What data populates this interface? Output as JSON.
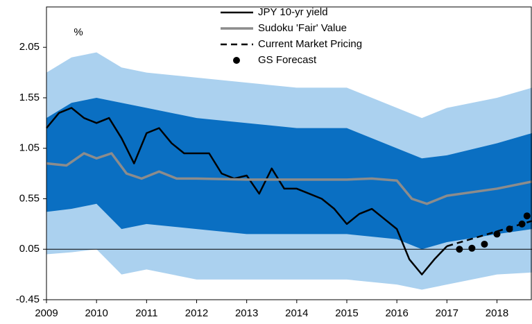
{
  "chart_data": {
    "type": "line",
    "y_unit": "%",
    "xlim": [
      2009,
      2018.7
    ],
    "xticks": [
      2009,
      2010,
      2011,
      2012,
      2013,
      2014,
      2015,
      2016,
      2017,
      2018
    ],
    "ylim": [
      -0.45,
      2.45
    ],
    "yticks": [
      -0.45,
      0.05,
      0.55,
      1.05,
      1.55,
      2.05
    ],
    "legend": "top",
    "bands": [
      {
        "color": "#abd1ef",
        "x": [
          2009,
          2009.5,
          2010,
          2010.5,
          2011,
          2012,
          2013,
          2014,
          2015,
          2016,
          2016.5,
          2017,
          2018,
          2018.7
        ],
        "upper": [
          1.8,
          1.95,
          2.0,
          1.85,
          1.8,
          1.75,
          1.7,
          1.65,
          1.65,
          1.45,
          1.35,
          1.45,
          1.55,
          1.65
        ],
        "lower": [
          0.0,
          0.02,
          0.05,
          -0.2,
          -0.15,
          -0.25,
          -0.25,
          -0.25,
          -0.25,
          -0.3,
          -0.35,
          -0.3,
          -0.2,
          -0.18
        ]
      },
      {
        "color": "#0a6fc2",
        "x": [
          2009,
          2009.5,
          2010,
          2010.5,
          2011,
          2012,
          2013,
          2014,
          2015,
          2016,
          2016.5,
          2017,
          2018,
          2018.7
        ],
        "upper": [
          1.35,
          1.5,
          1.55,
          1.5,
          1.45,
          1.35,
          1.3,
          1.25,
          1.25,
          1.05,
          0.95,
          0.98,
          1.1,
          1.2
        ],
        "lower": [
          0.42,
          0.45,
          0.5,
          0.25,
          0.3,
          0.25,
          0.2,
          0.2,
          0.2,
          0.15,
          0.05,
          0.12,
          0.2,
          0.25
        ]
      }
    ],
    "series": [
      {
        "name": "JPY 10-yr yield",
        "color": "#000000",
        "style": "solid",
        "width": 2.5,
        "x": [
          2009,
          2009.25,
          2009.5,
          2009.75,
          2010,
          2010.25,
          2010.5,
          2010.75,
          2011,
          2011.25,
          2011.5,
          2011.75,
          2012,
          2012.25,
          2012.5,
          2012.75,
          2013,
          2013.25,
          2013.5,
          2013.75,
          2014,
          2014.25,
          2014.5,
          2014.75,
          2015,
          2015.25,
          2015.5,
          2015.75,
          2016,
          2016.25,
          2016.5,
          2016.75,
          2017
        ],
        "values": [
          1.25,
          1.4,
          1.45,
          1.35,
          1.3,
          1.35,
          1.15,
          0.9,
          1.2,
          1.25,
          1.1,
          1.0,
          1.0,
          1.0,
          0.8,
          0.75,
          0.78,
          0.6,
          0.85,
          0.65,
          0.65,
          0.6,
          0.55,
          0.45,
          0.3,
          0.4,
          0.45,
          0.35,
          0.25,
          -0.05,
          -0.2,
          -0.05,
          0.08
        ]
      },
      {
        "name": "Sudoku 'Fair' Value",
        "color": "#8c8c8c",
        "style": "solid",
        "width": 3.5,
        "x": [
          2009,
          2009.4,
          2009.75,
          2010,
          2010.3,
          2010.6,
          2010.9,
          2011.25,
          2011.6,
          2012,
          2013,
          2014,
          2015,
          2015.5,
          2016,
          2016.3,
          2016.6,
          2017,
          2018,
          2018.7
        ],
        "values": [
          0.9,
          0.88,
          1.0,
          0.95,
          1.0,
          0.8,
          0.75,
          0.82,
          0.75,
          0.75,
          0.74,
          0.74,
          0.74,
          0.75,
          0.73,
          0.55,
          0.5,
          0.58,
          0.65,
          0.72
        ]
      },
      {
        "name": "Current Market Pricing",
        "color": "#000000",
        "style": "dashed",
        "width": 2.5,
        "x": [
          2017,
          2018.7
        ],
        "values": [
          0.08,
          0.33
        ]
      },
      {
        "name": "GS Forecast",
        "color": "#000000",
        "style": "dots",
        "x": [
          2017.25,
          2017.5,
          2017.75,
          2018,
          2018.25,
          2018.5,
          2018.6
        ],
        "values": [
          0.05,
          0.06,
          0.1,
          0.2,
          0.25,
          0.3,
          0.38
        ]
      }
    ]
  }
}
